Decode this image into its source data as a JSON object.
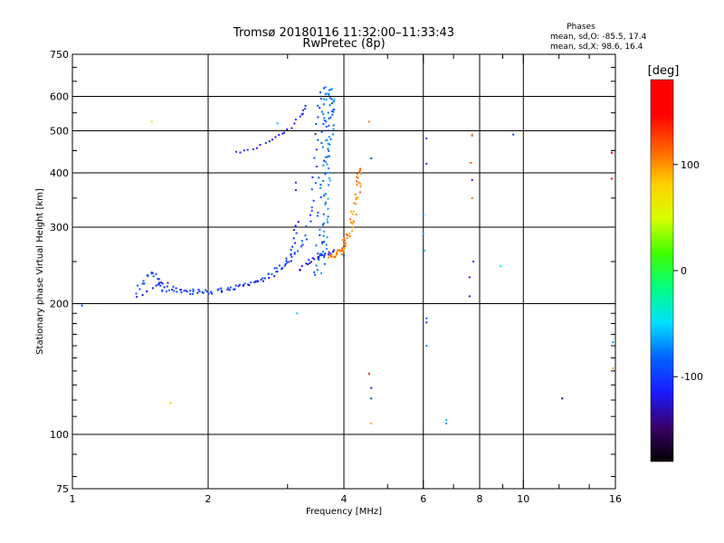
{
  "chart_data": {
    "type": "scatter",
    "title": "Tromsø 20180116 11:32:00–11:33:43",
    "subtitle": "RwPretec (8p)",
    "xlabel": "Frequency [MHz]",
    "ylabel": "Stationary phase Virtual Height [km]",
    "xscale": "log",
    "yscale": "log",
    "xlim": [
      1,
      16
    ],
    "ylim": [
      75,
      750
    ],
    "xticks": [
      1,
      2,
      4,
      6,
      8,
      10,
      16
    ],
    "xtick_labels": [
      "1",
      "2",
      "4",
      "6",
      "8",
      "10",
      "16"
    ],
    "xgrid": [
      2,
      4,
      6,
      8,
      10
    ],
    "xminor": [
      3,
      5,
      7,
      9,
      12,
      14
    ],
    "yticks": [
      75,
      100,
      200,
      300,
      400,
      500,
      600,
      750
    ],
    "ytick_labels": [
      "75",
      "100",
      "200",
      "300",
      "400",
      "500",
      "600",
      "750"
    ],
    "ygrid": [
      100,
      200,
      300,
      400,
      500,
      600
    ],
    "yminor": [
      80,
      90,
      110,
      120,
      130,
      140,
      150,
      160,
      170,
      180,
      190,
      250,
      350,
      450,
      550,
      650,
      700
    ],
    "grid": true,
    "phases_header": "Phases",
    "phases_lines": [
      "mean, sd,O: -85.5, 17.4",
      "mean, sd,X:  98.6, 16.4"
    ],
    "colorbar": {
      "label": "[deg]",
      "min": -180,
      "max": 180,
      "ticks": [
        100,
        0,
        -100
      ],
      "tick_labels": [
        "100",
        "0",
        "-100"
      ],
      "colors": [
        "#000000",
        "#3a006a",
        "#1a1aff",
        "#0064ff",
        "#00e0ff",
        "#00ff80",
        "#40ff00",
        "#d8ff00",
        "#ffd000",
        "#ff6000",
        "#ff0000",
        "#ff0000"
      ]
    },
    "series": [
      {
        "curves": [
          {
            "points": [
              [
                1.38,
                212
              ],
              [
                1.45,
                228
              ],
              [
                1.5,
                238
              ],
              [
                1.55,
                225
              ],
              [
                1.6,
                215
              ],
              [
                1.7,
                214
              ],
              [
                1.85,
                213
              ],
              [
                2.0,
                213
              ],
              [
                2.2,
                216
              ],
              [
                2.4,
                221
              ],
              [
                2.6,
                228
              ],
              [
                2.8,
                237
              ],
              [
                3.0,
                250
              ],
              [
                3.15,
                265
              ],
              [
                3.3,
                290
              ],
              [
                3.4,
                340
              ],
              [
                3.45,
                420
              ],
              [
                3.5,
                540
              ],
              [
                3.6,
                625
              ]
            ],
            "count": 95,
            "jitter": 0.025,
            "phase": -95
          },
          {
            "points": [
              [
                1.4,
                207
              ],
              [
                1.5,
                218
              ],
              [
                1.6,
                225
              ],
              [
                1.7,
                215
              ],
              [
                1.85,
                212
              ],
              [
                2.0,
                212
              ],
              [
                2.2,
                215
              ],
              [
                2.4,
                219
              ],
              [
                2.6,
                226
              ],
              [
                2.8,
                234
              ],
              [
                2.95,
                245
              ],
              [
                3.05,
                260
              ],
              [
                3.1,
                280
              ],
              [
                3.15,
                310
              ]
            ],
            "count": 55,
            "jitter": 0.02,
            "phase": -110
          },
          {
            "points": [
              [
                3.5,
                230
              ],
              [
                3.55,
                280
              ],
              [
                3.58,
                380
              ],
              [
                3.62,
                500
              ],
              [
                3.66,
                580
              ],
              [
                3.7,
                630
              ]
            ],
            "count": 60,
            "jitter": 0.04,
            "phase": -80
          },
          {
            "points": [
              [
                3.6,
                250
              ],
              [
                3.65,
                320
              ],
              [
                3.7,
                420
              ],
              [
                3.75,
                520
              ],
              [
                3.8,
                600
              ]
            ],
            "count": 50,
            "jitter": 0.03,
            "phase": -75
          },
          {
            "points": [
              [
                3.2,
                240
              ],
              [
                3.35,
                250
              ],
              [
                3.5,
                255
              ],
              [
                3.65,
                260
              ],
              [
                3.8,
                265
              ]
            ],
            "count": 22,
            "jitter": 0.02,
            "phase": -120
          },
          {
            "points": [
              [
                2.3,
                445
              ],
              [
                2.55,
                455
              ],
              [
                2.8,
                480
              ],
              [
                3.0,
                500
              ],
              [
                3.2,
                540
              ],
              [
                3.3,
                570
              ]
            ],
            "count": 24,
            "jitter": 0.012,
            "phase": -110
          },
          {
            "points": [
              [
                3.7,
                255
              ],
              [
                3.9,
                262
              ],
              [
                4.0,
                270
              ],
              [
                4.1,
                290
              ],
              [
                4.2,
                320
              ],
              [
                4.3,
                370
              ],
              [
                4.35,
                410
              ]
            ],
            "count": 65,
            "jitter": 0.03,
            "phase": 105
          }
        ],
        "points": [
          [
            1.05,
            198,
            -95
          ],
          [
            1.5,
            525,
            45
          ],
          [
            1.65,
            118,
            80
          ],
          [
            2.85,
            520,
            -60
          ],
          [
            3.13,
            380,
            -110
          ],
          [
            3.13,
            365,
            -110
          ],
          [
            3.15,
            190,
            -55
          ],
          [
            4.0,
            258,
            -95
          ],
          [
            4.55,
            525,
            105
          ],
          [
            4.55,
            138,
            140
          ],
          [
            4.6,
            432,
            -100
          ],
          [
            4.6,
            128,
            -110
          ],
          [
            4.6,
            121,
            -100
          ],
          [
            4.6,
            106,
            90
          ],
          [
            6.0,
            320,
            -70
          ],
          [
            6.0,
            290,
            -60
          ],
          [
            6.05,
            265,
            -50
          ],
          [
            6.1,
            480,
            -100
          ],
          [
            6.1,
            420,
            -105
          ],
          [
            6.1,
            185,
            -80
          ],
          [
            6.1,
            181,
            -100
          ],
          [
            6.1,
            160,
            -70
          ],
          [
            6.75,
            108,
            -60
          ],
          [
            6.75,
            106,
            -70
          ],
          [
            7.6,
            230,
            -110
          ],
          [
            7.6,
            208,
            -110
          ],
          [
            7.65,
            422,
            120
          ],
          [
            7.7,
            488,
            -100
          ],
          [
            7.7,
            490,
            95
          ],
          [
            7.7,
            385,
            -110
          ],
          [
            7.7,
            350,
            110
          ],
          [
            7.75,
            250,
            -110
          ],
          [
            8.9,
            244,
            -45
          ],
          [
            9.5,
            490,
            -100
          ],
          [
            12.2,
            121,
            -150
          ],
          [
            15.7,
            445,
            150
          ],
          [
            15.7,
            388,
            150
          ],
          [
            15.8,
            163,
            -65
          ],
          [
            15.8,
            142,
            95
          ]
        ]
      }
    ]
  }
}
